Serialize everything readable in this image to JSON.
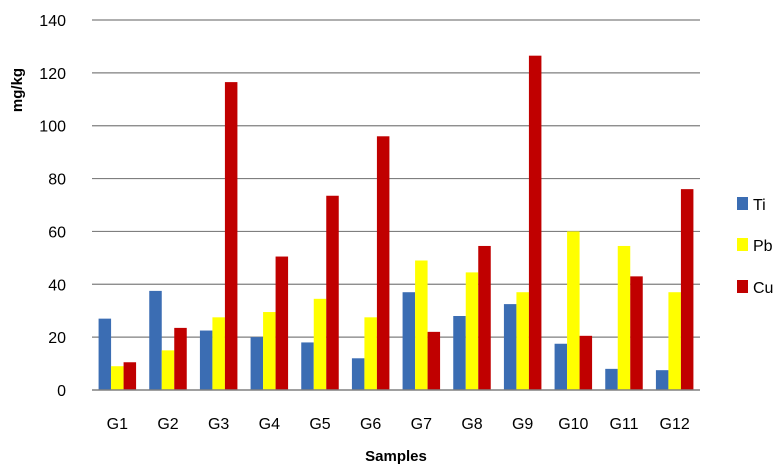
{
  "chart_data": {
    "type": "bar",
    "xlabel": "Samples",
    "ylabel": "mg/kg",
    "ylim": [
      0,
      140
    ],
    "yticks": [
      0,
      20,
      40,
      60,
      80,
      100,
      120,
      140
    ],
    "grid": true,
    "legend_position": "right",
    "categories": [
      "G1",
      "G2",
      "G3",
      "G4",
      "G5",
      "G6",
      "G7",
      "G8",
      "G9",
      "G10",
      "G11",
      "G12"
    ],
    "series": [
      {
        "name": "Ti",
        "color": "#3B6DB3",
        "values": [
          27,
          37.5,
          22.5,
          20,
          18,
          12,
          37,
          28,
          32.5,
          17.5,
          8,
          7.5
        ]
      },
      {
        "name": "Pb",
        "color": "#FFFF00",
        "values": [
          9,
          15,
          27.5,
          29.5,
          34.5,
          27.5,
          49,
          44.5,
          37,
          60,
          54.5,
          37
        ]
      },
      {
        "name": "Cu",
        "color": "#C00000",
        "values": [
          10.5,
          23.5,
          116.5,
          50.5,
          73.5,
          96,
          22,
          54.5,
          126.5,
          20.5,
          43,
          76
        ]
      }
    ]
  }
}
